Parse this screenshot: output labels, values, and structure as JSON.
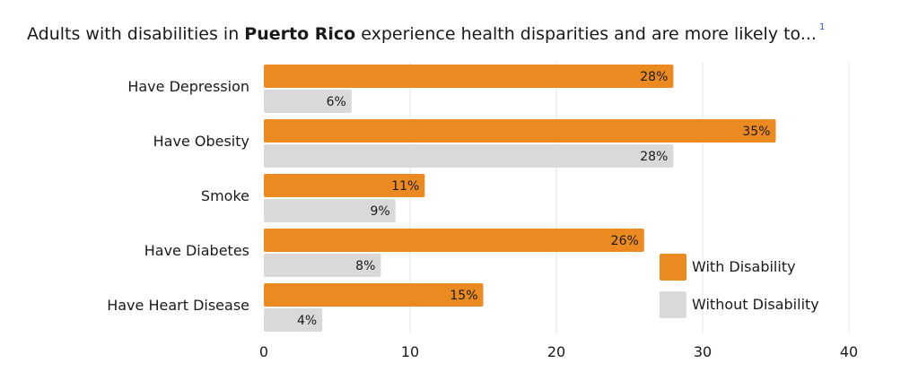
{
  "title": {
    "prefix": "Adults with disabilities in ",
    "bold": "Puerto Rico",
    "suffix": " experience health disparities and are more likely to...",
    "footnote": "1"
  },
  "colors": {
    "with_disability": "#EC8A22",
    "without_disability": "#D9D9D9",
    "grid": "#E6E6E6",
    "footnote": "#1F4FBF"
  },
  "chart_data": {
    "type": "bar",
    "orientation": "horizontal",
    "title": "Adults with disabilities in Puerto Rico experience health disparities and are more likely to...",
    "categories": [
      "Have Depression",
      "Have Obesity",
      "Smoke",
      "Have Diabetes",
      "Have Heart Disease"
    ],
    "series": [
      {
        "name": "With Disability",
        "values": [
          28,
          35,
          11,
          26,
          15
        ],
        "labels": [
          "28%",
          "35%",
          "11%",
          "26%",
          "15%"
        ]
      },
      {
        "name": "Without Disability",
        "values": [
          6,
          28,
          9,
          8,
          4
        ],
        "labels": [
          "6%",
          "28%",
          "9%",
          "8%",
          "4%"
        ]
      }
    ],
    "xlabel": "",
    "ylabel": "",
    "xlim": [
      0,
      40
    ],
    "xticks": [
      0,
      10,
      20,
      30,
      40
    ],
    "xtick_labels": [
      "0",
      "10",
      "20",
      "30",
      "40"
    ],
    "grid": true,
    "legend": {
      "position": "bottom-right",
      "entries": [
        "With Disability",
        "Without Disability"
      ]
    }
  }
}
